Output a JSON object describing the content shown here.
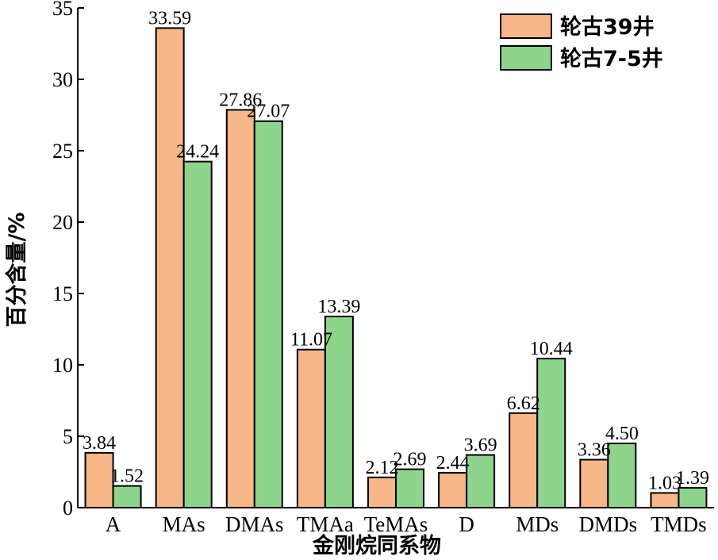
{
  "chart_data": {
    "type": "bar",
    "categories": [
      "A",
      "MAs",
      "DMAs",
      "TMAa",
      "TeMAs",
      "D",
      "MDs",
      "DMDs",
      "TMDs"
    ],
    "series": [
      {
        "name": "轮古39井",
        "values": [
          3.84,
          33.59,
          27.86,
          11.07,
          2.12,
          2.44,
          6.62,
          3.36,
          1.03
        ],
        "labels": [
          "3.84",
          "33.59",
          "27.86",
          "11.07",
          "2.12",
          "2.44",
          "6.62",
          "3.36",
          "1.03"
        ],
        "color": "#F8B789"
      },
      {
        "name": "轮古7-5井",
        "values": [
          1.52,
          24.24,
          27.07,
          13.39,
          2.69,
          3.69,
          10.44,
          4.5,
          1.39
        ],
        "labels": [
          "1.52",
          "24.24",
          "27.07",
          "13.39",
          "2.69",
          "3.69",
          "10.44",
          "4.50",
          "1.39"
        ],
        "color": "#8ED48D"
      }
    ],
    "xlabel": "金刚烷同系物",
    "ylabel": "百分含量/%",
    "ylim": [
      0,
      35
    ],
    "yticks": [
      0,
      5,
      10,
      15,
      20,
      25,
      30,
      35
    ],
    "grid": false,
    "legend": "top-right"
  }
}
